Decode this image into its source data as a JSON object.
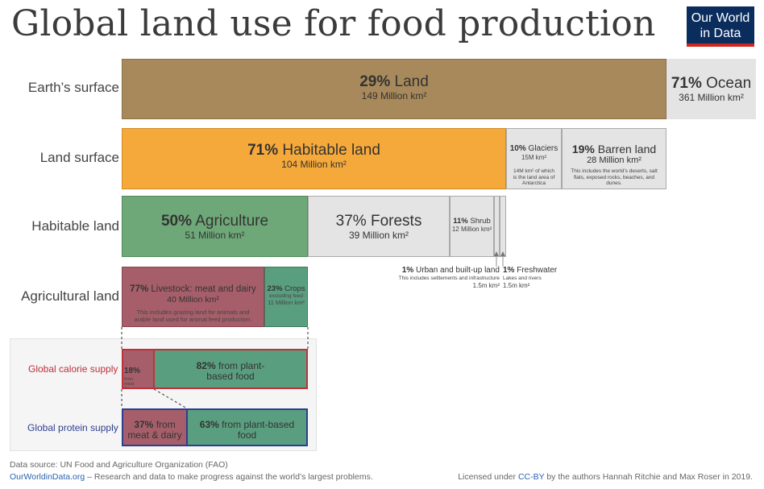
{
  "title": "Global land use for food production",
  "logo": {
    "line1": "Our World",
    "line2": "in Data"
  },
  "rows": {
    "earth": "Earth’s surface",
    "land": "Land surface",
    "habitable": "Habitable land",
    "agricultural": "Agricultural land"
  },
  "earth": {
    "land": {
      "pct": "29%",
      "name": "Land",
      "area": "149 Million km²"
    },
    "ocean": {
      "pct": "71%",
      "name": "Ocean",
      "area": "361 Million km²"
    }
  },
  "land_surface": {
    "habitable": {
      "pct": "71%",
      "name": "Habitable land",
      "area": "104 Million km²"
    },
    "glaciers": {
      "pct": "10%",
      "name": "Glaciers",
      "area": "15M km²",
      "note": "14M km² of which is the land area of Antarctica"
    },
    "barren": {
      "pct": "19%",
      "name": "Barren land",
      "area": "28 Million km²",
      "note": "This includes the world’s deserts, salt flats, exposed rocks, beaches, and dunes."
    }
  },
  "habitable_land": {
    "agriculture": {
      "pct": "50%",
      "name": "Agriculture",
      "area": "51 Million km²"
    },
    "forests": {
      "pct": "37%",
      "name": "Forests",
      "area": "39 Million km²"
    },
    "shrub": {
      "pct": "11%",
      "name": "Shrub",
      "area": "12 Million km²"
    },
    "urban": {
      "pct": "1%",
      "name": "Urban and built-up land",
      "note": "This includes settlements and infrastructure",
      "area": "1.5m km²"
    },
    "freshwater": {
      "pct": "1%",
      "name": "Freshwater",
      "note": "Lakes and rivers",
      "area": "1.5m km²"
    }
  },
  "agricultural_land": {
    "livestock": {
      "pct": "77%",
      "name": "Livestock: meat and dairy",
      "area": "40 Million km²",
      "note": "This includes grazing land for animals and arable land used for animal feed production."
    },
    "crops": {
      "pct": "23%",
      "name": "Crops",
      "note": "excluding feed",
      "area": "11 Million km²"
    }
  },
  "calorie": {
    "label": "Global calorie supply",
    "meat": {
      "pct": "18%",
      "text": "from meat & dairy"
    },
    "plant": {
      "pct": "82%",
      "text": "from plant-based food"
    }
  },
  "protein": {
    "label": "Global protein supply",
    "meat": {
      "pct": "37%",
      "text": "from meat & dairy"
    },
    "plant": {
      "pct": "63%",
      "text": "from plant-based food"
    }
  },
  "footer": {
    "source": "Data source: UN Food and Agriculture Organization (FAO)",
    "site": "OurWorldinData.org",
    "tagline": " – Research and data to make progress against the world’s largest problems.",
    "license_pre": "Licensed under ",
    "license_link": "CC-BY",
    "license_post": " by the authors Hannah Ritchie and Max Roser in 2019."
  },
  "colors": {
    "land": "#a8895b",
    "ocean": "#e4e4e4",
    "habitable": "#f6a93b",
    "gray": "#e4e4e4",
    "agriculture": "#6fa878",
    "livestock": "#a65f6a",
    "crops": "#5a9e80",
    "calorie_red": "#c0303a",
    "protein_blue": "#2c3f8f"
  },
  "chart_data": {
    "type": "bar",
    "title": "Global land use for food production",
    "series": [
      {
        "name": "Earth’s surface",
        "categories": [
          "Land",
          "Ocean"
        ],
        "values": [
          29,
          71
        ],
        "areas_million_km2": [
          149,
          361
        ]
      },
      {
        "name": "Land surface",
        "categories": [
          "Habitable land",
          "Glaciers",
          "Barren land"
        ],
        "values": [
          71,
          10,
          19
        ],
        "areas_million_km2": [
          104,
          15,
          28
        ]
      },
      {
        "name": "Habitable land",
        "categories": [
          "Agriculture",
          "Forests",
          "Shrub",
          "Urban and built-up land",
          "Freshwater"
        ],
        "values": [
          50,
          37,
          11,
          1,
          1
        ],
        "areas_million_km2": [
          51,
          39,
          12,
          1.5,
          1.5
        ]
      },
      {
        "name": "Agricultural land",
        "categories": [
          "Livestock: meat and dairy",
          "Crops"
        ],
        "values": [
          77,
          23
        ],
        "areas_million_km2": [
          40,
          11
        ]
      },
      {
        "name": "Global calorie supply",
        "categories": [
          "from meat & dairy",
          "from plant-based food"
        ],
        "values": [
          18,
          82
        ]
      },
      {
        "name": "Global protein supply",
        "categories": [
          "from meat & dairy",
          "from plant-based food"
        ],
        "values": [
          37,
          63
        ]
      }
    ]
  }
}
